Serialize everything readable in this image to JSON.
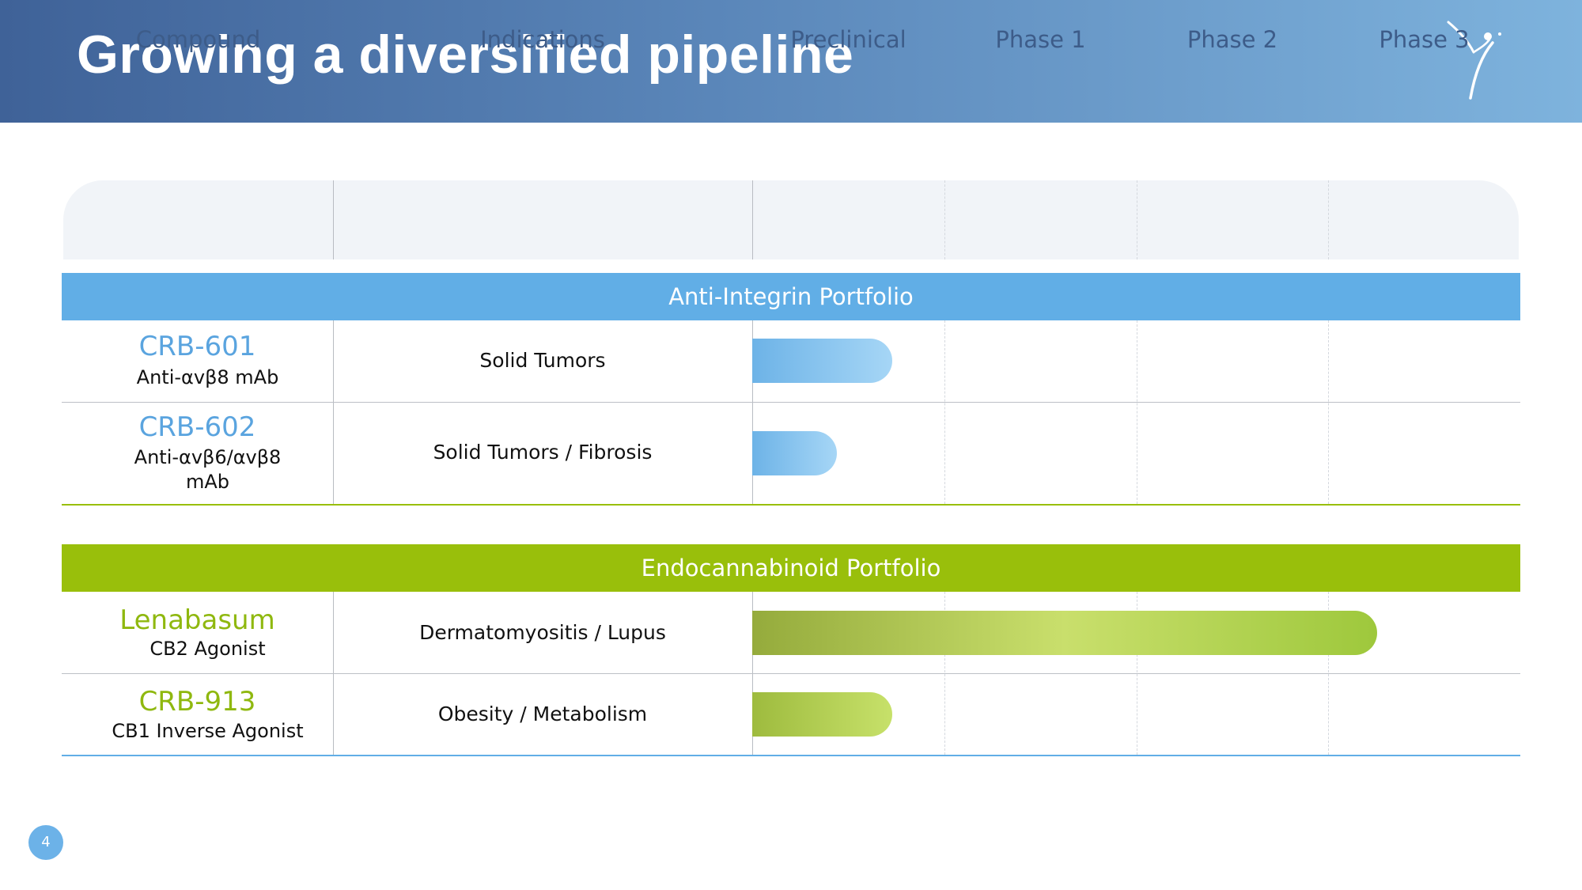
{
  "title": "Growing a diversified pipeline",
  "columns": {
    "compound": "Compound",
    "indications": "Indications",
    "preclinical": "Preclinical",
    "phase1": "Phase 1",
    "phase2": "Phase 2",
    "phase3": "Phase 3"
  },
  "portfolios": [
    {
      "name": "Anti-Integrin Portfolio",
      "color": "#61aee6",
      "compounds": [
        {
          "name": "CRB-601",
          "subtitle": "Anti-αvβ8 mAb",
          "indication": "Solid Tumors",
          "progress_phases": 0.73
        },
        {
          "name": "CRB-602",
          "subtitle_line1": "Anti-αvβ6/αvβ8",
          "subtitle_line2": "mAb",
          "indication": "Solid Tumors / Fibrosis",
          "progress_phases": 0.44
        }
      ]
    },
    {
      "name": "Endocannabinoid Portfolio",
      "color": "#99bf0b",
      "compounds": [
        {
          "name": "Lenabasum",
          "subtitle": "CB2 Agonist",
          "indication": "Dermatomyositis / Lupus",
          "progress_phases": 3.25
        },
        {
          "name": "CRB-913",
          "subtitle": "CB1 Inverse Agonist",
          "indication": "Obesity / Metabolism",
          "progress_phases": 0.73
        }
      ]
    }
  ],
  "page_number": "4"
}
